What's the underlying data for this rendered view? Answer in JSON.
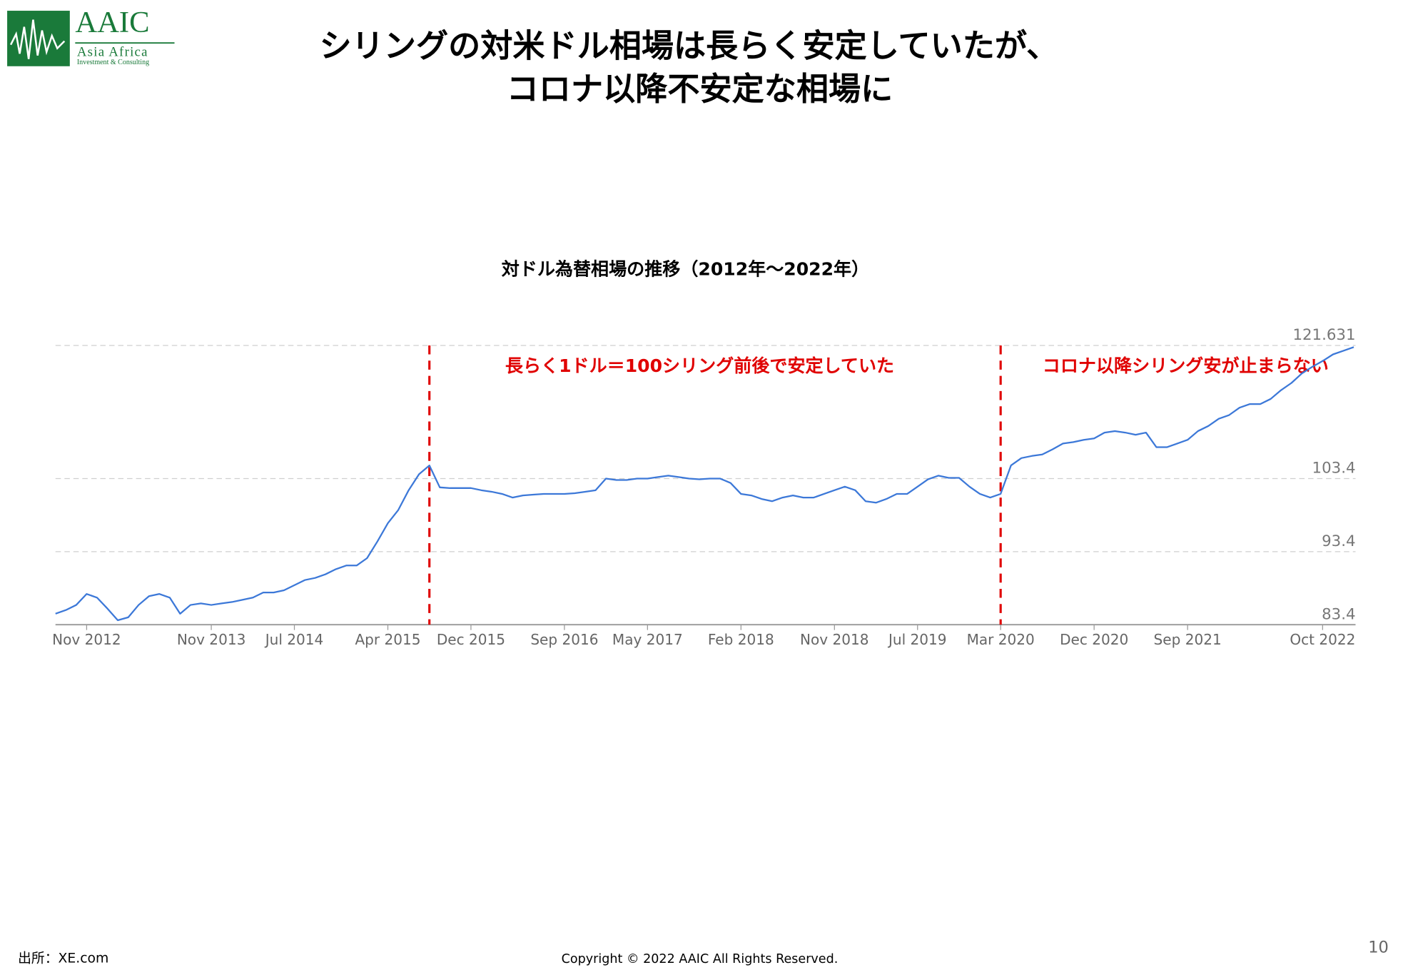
{
  "logo": {
    "name": "AAIC",
    "line1": "Asia Africa",
    "line2": "Investment & Consulting"
  },
  "title_lines": [
    "シリングの対米ドル相場は長らく安定していたが、",
    "コロナ以降不安定な相場に"
  ],
  "chart_data": {
    "type": "line",
    "title": "対ドル為替相場の推移（2012年～2022年）",
    "x": [
      "2012-08",
      "2012-09",
      "2012-10",
      "2012-11",
      "2012-12",
      "2013-01",
      "2013-02",
      "2013-03",
      "2013-04",
      "2013-05",
      "2013-06",
      "2013-07",
      "2013-08",
      "2013-09",
      "2013-10",
      "2013-11",
      "2013-12",
      "2014-01",
      "2014-02",
      "2014-03",
      "2014-04",
      "2014-05",
      "2014-06",
      "2014-07",
      "2014-08",
      "2014-09",
      "2014-10",
      "2014-11",
      "2014-12",
      "2015-01",
      "2015-02",
      "2015-03",
      "2015-04",
      "2015-05",
      "2015-06",
      "2015-07",
      "2015-08",
      "2015-09",
      "2015-10",
      "2015-11",
      "2015-12",
      "2016-01",
      "2016-02",
      "2016-03",
      "2016-04",
      "2016-05",
      "2016-06",
      "2016-07",
      "2016-08",
      "2016-09",
      "2016-10",
      "2016-11",
      "2016-12",
      "2017-01",
      "2017-02",
      "2017-03",
      "2017-04",
      "2017-05",
      "2017-06",
      "2017-07",
      "2017-08",
      "2017-09",
      "2017-10",
      "2017-11",
      "2017-12",
      "2018-01",
      "2018-02",
      "2018-03",
      "2018-04",
      "2018-05",
      "2018-06",
      "2018-07",
      "2018-08",
      "2018-09",
      "2018-10",
      "2018-11",
      "2018-12",
      "2019-01",
      "2019-02",
      "2019-03",
      "2019-04",
      "2019-05",
      "2019-06",
      "2019-07",
      "2019-08",
      "2019-09",
      "2019-10",
      "2019-11",
      "2019-12",
      "2020-01",
      "2020-02",
      "2020-03",
      "2020-04",
      "2020-05",
      "2020-06",
      "2020-07",
      "2020-08",
      "2020-09",
      "2020-10",
      "2020-11",
      "2020-12",
      "2021-01",
      "2021-02",
      "2021-03",
      "2021-04",
      "2021-05",
      "2021-06",
      "2021-07",
      "2021-08",
      "2021-09",
      "2021-10",
      "2021-11",
      "2021-12",
      "2022-01",
      "2022-02",
      "2022-03",
      "2022-04",
      "2022-05",
      "2022-06",
      "2022-07",
      "2022-08",
      "2022-09",
      "2022-10",
      "2022-11",
      "2022-12",
      "2023-01"
    ],
    "values": [
      84.9,
      85.4,
      86.1,
      87.6,
      87.1,
      85.6,
      84.0,
      84.4,
      86.1,
      87.3,
      87.6,
      87.1,
      84.9,
      86.1,
      86.3,
      86.1,
      86.3,
      86.5,
      86.8,
      87.1,
      87.8,
      87.8,
      88.1,
      88.8,
      89.5,
      89.8,
      90.3,
      91.0,
      91.5,
      91.5,
      92.5,
      94.8,
      97.3,
      99.1,
      101.8,
      104.0,
      105.2,
      102.2,
      102.1,
      102.1,
      102.1,
      101.8,
      101.6,
      101.3,
      100.8,
      101.1,
      101.2,
      101.3,
      101.3,
      101.3,
      101.4,
      101.6,
      101.8,
      103.4,
      103.2,
      103.2,
      103.4,
      103.4,
      103.6,
      103.8,
      103.6,
      103.4,
      103.3,
      103.4,
      103.4,
      102.8,
      101.3,
      101.1,
      100.6,
      100.3,
      100.8,
      101.1,
      100.8,
      100.8,
      101.3,
      101.8,
      102.3,
      101.8,
      100.3,
      100.1,
      100.6,
      101.3,
      101.3,
      102.3,
      103.3,
      103.8,
      103.5,
      103.5,
      102.3,
      101.3,
      100.8,
      101.3,
      105.2,
      106.2,
      106.5,
      106.7,
      107.4,
      108.2,
      108.4,
      108.7,
      108.9,
      109.7,
      109.9,
      109.7,
      109.4,
      109.7,
      107.7,
      107.7,
      108.2,
      108.7,
      109.9,
      110.6,
      111.6,
      112.1,
      113.1,
      113.6,
      113.6,
      114.3,
      115.5,
      116.5,
      117.8,
      118.7,
      119.5,
      120.4,
      120.9,
      121.4
    ],
    "color": "#3c78d8",
    "xlim": [
      "2012-08",
      "2023-01"
    ],
    "xticks": [
      {
        "value": "2012-11",
        "label": "Nov 2012"
      },
      {
        "value": "2013-11",
        "label": "Nov 2013"
      },
      {
        "value": "2014-07",
        "label": "Jul 2014"
      },
      {
        "value": "2015-04",
        "label": "Apr 2015"
      },
      {
        "value": "2015-12",
        "label": "Dec 2015"
      },
      {
        "value": "2016-09",
        "label": "Sep 2016"
      },
      {
        "value": "2017-05",
        "label": "May 2017"
      },
      {
        "value": "2018-02",
        "label": "Feb 2018"
      },
      {
        "value": "2018-11",
        "label": "Nov 2018"
      },
      {
        "value": "2019-07",
        "label": "Jul 2019"
      },
      {
        "value": "2020-03",
        "label": "Mar 2020"
      },
      {
        "value": "2020-12",
        "label": "Dec 2020"
      },
      {
        "value": "2021-09",
        "label": "Sep 2021"
      },
      {
        "value": "2022-10",
        "label": "Oct 2022"
      }
    ],
    "ylim": [
      83.4,
      121.631
    ],
    "yticks": [
      83.4,
      93.4,
      103.4,
      121.631
    ],
    "grid": true,
    "vlines": {
      "x": [
        "2015-08",
        "2020-03"
      ],
      "color": "#e00000"
    },
    "annotations": [
      {
        "text": "長らく1ドル＝100シリング前後で安定していた",
        "color": "#e00000"
      },
      {
        "text": "コロナ以降シリング安が止まらない",
        "color": "#e00000"
      }
    ]
  },
  "footer": {
    "source": "出所：XE.com",
    "copyright": "Copyright © 2022 AAIC All Rights Reserved.",
    "page": "10"
  }
}
